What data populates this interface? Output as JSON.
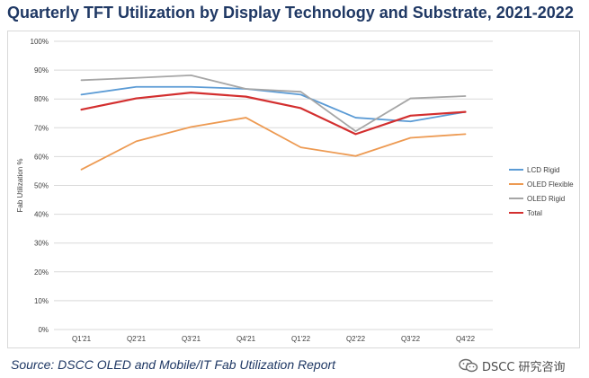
{
  "title": "Quarterly TFT Utilization by Display Technology and Substrate, 2021-2022",
  "source": "Source: DSCC OLED and Mobile/IT Fab Utilization Report",
  "watermark": "DSCC 研究咨询",
  "colors": {
    "title": "#1f3864",
    "grid": "#d9d9d9",
    "axis_text": "#404040"
  },
  "chart_data": {
    "type": "line",
    "title": "",
    "xlabel": "",
    "ylabel": "Fab Utilization %",
    "categories": [
      "Q1'21",
      "Q2'21",
      "Q3'21",
      "Q4'21",
      "Q1'22",
      "Q2'22",
      "Q3'22",
      "Q4'22"
    ],
    "ylim": [
      0,
      100
    ],
    "yticks": [
      0,
      10,
      20,
      30,
      40,
      50,
      60,
      70,
      80,
      90,
      100
    ],
    "ytick_labels": [
      "0%",
      "10%",
      "20%",
      "30%",
      "40%",
      "50%",
      "60%",
      "70%",
      "80%",
      "90%",
      "100%"
    ],
    "grid": true,
    "legend_position": "right",
    "series": [
      {
        "name": "LCD Rigid",
        "color": "#5b9bd5",
        "values": [
          81.5,
          84.2,
          84.2,
          83.5,
          81.5,
          73.5,
          72.2,
          75.5
        ]
      },
      {
        "name": "OLED Flexible",
        "color": "#ed9a52",
        "values": [
          55.5,
          65.3,
          70.3,
          73.5,
          63.2,
          60.2,
          66.5,
          67.8
        ]
      },
      {
        "name": "OLED Rigid",
        "color": "#a6a6a6",
        "values": [
          86.5,
          87.3,
          88.2,
          83.5,
          82.5,
          68.8,
          80.2,
          81.0
        ]
      },
      {
        "name": "Total",
        "color": "#d32f2f",
        "values": [
          76.3,
          80.2,
          82.2,
          80.8,
          76.8,
          67.8,
          74.2,
          75.5
        ]
      }
    ]
  }
}
